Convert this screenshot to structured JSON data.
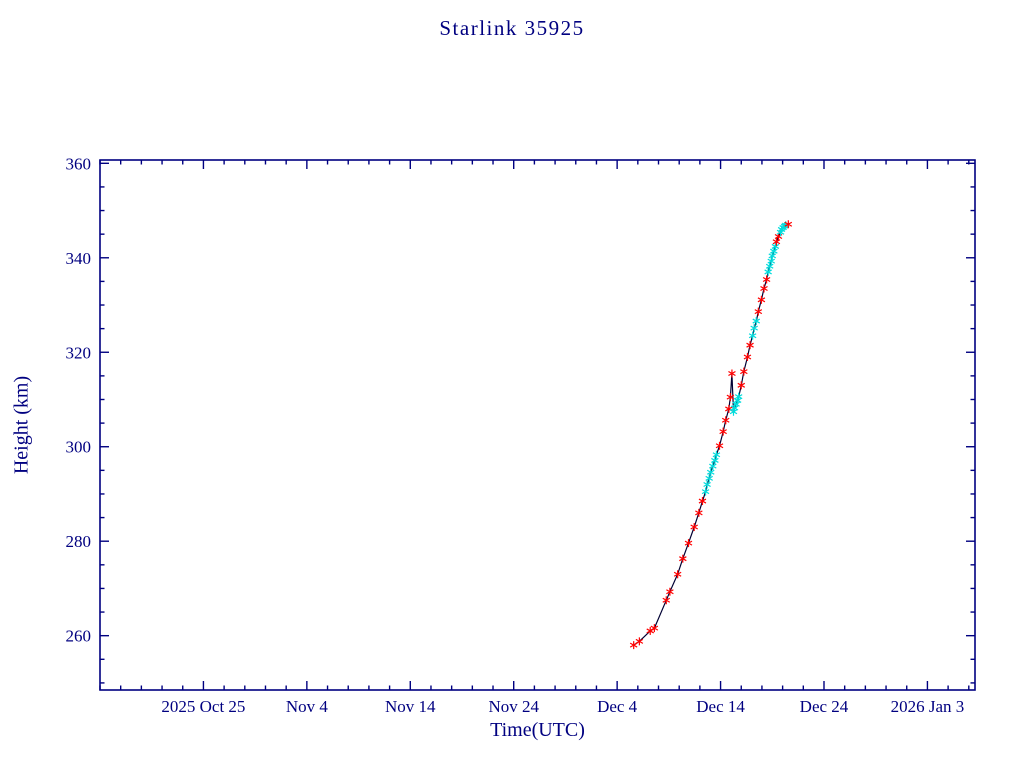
{
  "page": {
    "background": "#ffffff"
  },
  "chart_data": {
    "type": "line",
    "title": "Starlink 35925",
    "xlabel": "Time(UTC)",
    "ylabel": "Height (km)",
    "axis_color": "#000080",
    "text_color": "#000080",
    "line_color": "#000033",
    "marker_colors": {
      "r": "#ff0000",
      "c": "#00dcdc"
    },
    "grid": false,
    "legend": null,
    "xlim": [
      0,
      84.6
    ],
    "ylim": [
      248.5,
      360.7
    ],
    "x_minor_step": 2,
    "y_minor_step": 5,
    "x_ticks_major": [
      {
        "d": 10,
        "label": "2025 Oct 25"
      },
      {
        "d": 20,
        "label": "Nov 4"
      },
      {
        "d": 30,
        "label": "Nov 14"
      },
      {
        "d": 40,
        "label": "Nov 24"
      },
      {
        "d": 50,
        "label": "Dec 4"
      },
      {
        "d": 60,
        "label": "Dec 14"
      },
      {
        "d": 70,
        "label": "Dec 24"
      },
      {
        "d": 80,
        "label": "2026 Jan 3"
      }
    ],
    "y_ticks_major": [
      260,
      280,
      300,
      320,
      340,
      360
    ],
    "points_note": "d = days since 2025 Oct 15 (axis origin); h = height km; c = marker color key",
    "points": [
      [
        51.6,
        258.0,
        "r"
      ],
      [
        52.15,
        258.8,
        "r"
      ],
      [
        53.2,
        261.0,
        "r"
      ],
      [
        53.6,
        261.6,
        "r"
      ],
      [
        54.75,
        267.5,
        "r"
      ],
      [
        55.1,
        269.3,
        "r"
      ],
      [
        55.85,
        273.0,
        "r"
      ],
      [
        56.35,
        276.3,
        "r"
      ],
      [
        56.9,
        279.6,
        "r"
      ],
      [
        57.45,
        283.0,
        "r"
      ],
      [
        57.9,
        286.0,
        "r"
      ],
      [
        58.25,
        288.5,
        "r"
      ],
      [
        58.55,
        290.5,
        "c"
      ],
      [
        58.7,
        292.0,
        "c"
      ],
      [
        58.9,
        293.3,
        "c"
      ],
      [
        59.05,
        294.6,
        "c"
      ],
      [
        59.25,
        295.9,
        "c"
      ],
      [
        59.45,
        297.1,
        "c"
      ],
      [
        59.6,
        298.3,
        "c"
      ],
      [
        59.9,
        300.2,
        "r"
      ],
      [
        60.25,
        303.2,
        "r"
      ],
      [
        60.5,
        305.6,
        "r"
      ],
      [
        60.8,
        308.0,
        "r"
      ],
      [
        60.95,
        310.5,
        "r"
      ],
      [
        61.1,
        315.5,
        "r"
      ],
      [
        61.25,
        307.4,
        "c"
      ],
      [
        61.35,
        308.2,
        "c"
      ],
      [
        61.5,
        309.0,
        "c"
      ],
      [
        61.65,
        309.8,
        "c"
      ],
      [
        61.75,
        310.6,
        "c"
      ],
      [
        62.0,
        313.0,
        "r"
      ],
      [
        62.25,
        315.9,
        "r"
      ],
      [
        62.6,
        319.0,
        "r"
      ],
      [
        62.85,
        321.5,
        "r"
      ],
      [
        63.1,
        323.5,
        "c"
      ],
      [
        63.25,
        325.1,
        "c"
      ],
      [
        63.45,
        326.6,
        "c"
      ],
      [
        63.65,
        328.6,
        "r"
      ],
      [
        63.95,
        331.1,
        "r"
      ],
      [
        64.2,
        333.5,
        "r"
      ],
      [
        64.45,
        335.4,
        "r"
      ],
      [
        64.6,
        337.0,
        "c"
      ],
      [
        64.75,
        338.2,
        "c"
      ],
      [
        64.9,
        339.3,
        "c"
      ],
      [
        65.0,
        340.4,
        "c"
      ],
      [
        65.15,
        341.4,
        "c"
      ],
      [
        65.3,
        342.4,
        "c"
      ],
      [
        65.4,
        343.4,
        "r"
      ],
      [
        65.6,
        344.5,
        "r"
      ],
      [
        65.8,
        345.4,
        "c"
      ],
      [
        65.9,
        346.0,
        "c"
      ],
      [
        66.05,
        346.4,
        "c"
      ],
      [
        66.2,
        346.7,
        "c"
      ],
      [
        66.3,
        346.9,
        "c"
      ],
      [
        66.55,
        347.1,
        "r"
      ]
    ]
  }
}
